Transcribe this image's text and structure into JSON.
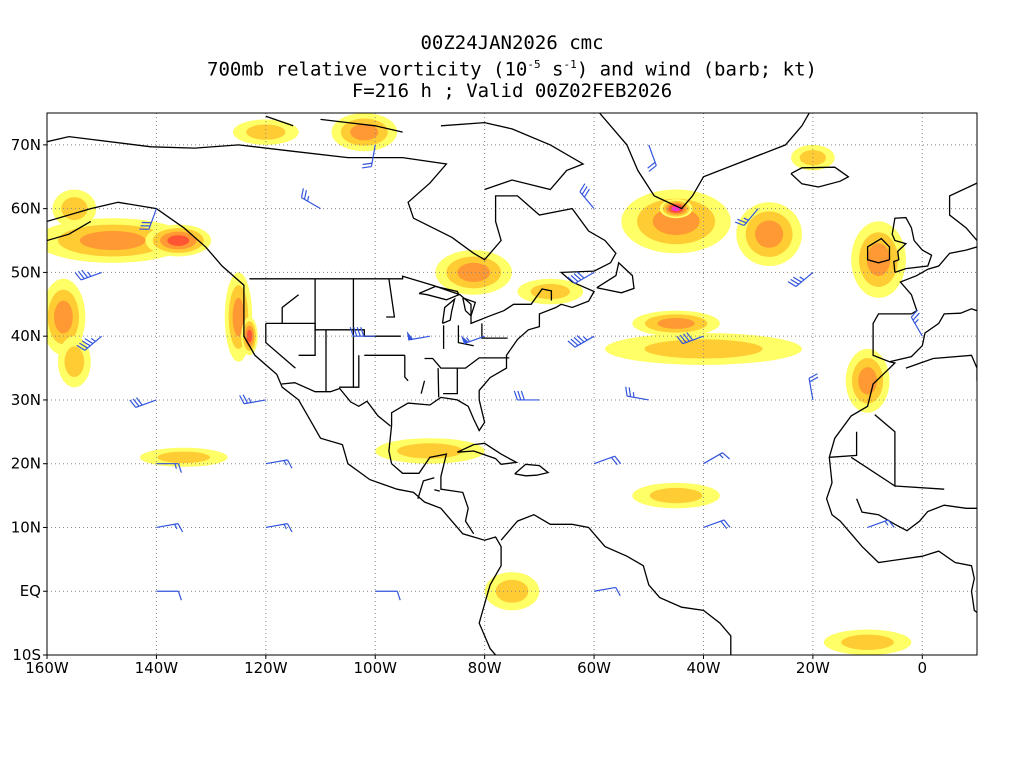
{
  "title": {
    "line1": "00Z24JAN2026 cmc",
    "line2_pre": "700mb relative vorticity (10",
    "line2_sup1": "-5",
    "line2_mid": " s",
    "line2_sup2": "-1",
    "line2_post": ") and wind (barb; kt)",
    "line3": "F=216 h ; Valid 00Z02FEB2026"
  },
  "map": {
    "lon_range": [
      -160,
      10
    ],
    "lat_range": [
      -10,
      75
    ],
    "lat_ticks": [
      {
        "value": 70,
        "label": "70N"
      },
      {
        "value": 60,
        "label": "60N"
      },
      {
        "value": 50,
        "label": "50N"
      },
      {
        "value": 40,
        "label": "40N"
      },
      {
        "value": 30,
        "label": "30N"
      },
      {
        "value": 20,
        "label": "20N"
      },
      {
        "value": 10,
        "label": "10N"
      },
      {
        "value": 0,
        "label": "EQ"
      },
      {
        "value": -10,
        "label": "10S"
      }
    ],
    "lon_ticks": [
      {
        "value": -160,
        "label": "160W"
      },
      {
        "value": -140,
        "label": "140W"
      },
      {
        "value": -120,
        "label": "120W"
      },
      {
        "value": -100,
        "label": "100W"
      },
      {
        "value": -80,
        "label": "80W"
      },
      {
        "value": -60,
        "label": "60W"
      },
      {
        "value": -40,
        "label": "40W"
      },
      {
        "value": -20,
        "label": "20W"
      },
      {
        "value": 0,
        "label": "0"
      }
    ],
    "colors": {
      "weak": "#ffff66",
      "moderate": "#ffcc33",
      "strong": "#ff9933",
      "intense": "#ff5533",
      "extreme": "#ff33cc",
      "barb": "#3355dd",
      "coast": "#000000",
      "grid": "#888888"
    },
    "vorticity_regions": [
      {
        "lon": -148,
        "lat": 55,
        "rx": 14,
        "ry": 3.5,
        "level": 3
      },
      {
        "lon": -136,
        "lat": 55,
        "rx": 6,
        "ry": 2.5,
        "level": 4
      },
      {
        "lon": -157,
        "lat": 43,
        "rx": 4,
        "ry": 6,
        "level": 3
      },
      {
        "lon": -155,
        "lat": 36,
        "rx": 3,
        "ry": 4,
        "level": 2
      },
      {
        "lon": -125,
        "lat": 43,
        "rx": 2.5,
        "ry": 7,
        "level": 3
      },
      {
        "lon": -123,
        "lat": 40,
        "rx": 1.5,
        "ry": 3,
        "level": 4
      },
      {
        "lon": -102,
        "lat": 72,
        "rx": 6,
        "ry": 3,
        "level": 3
      },
      {
        "lon": -120,
        "lat": 72,
        "rx": 6,
        "ry": 2,
        "level": 2
      },
      {
        "lon": -82,
        "lat": 50,
        "rx": 7,
        "ry": 3.5,
        "level": 3
      },
      {
        "lon": -68,
        "lat": 47,
        "rx": 6,
        "ry": 2,
        "level": 2
      },
      {
        "lon": -45,
        "lat": 58,
        "rx": 10,
        "ry": 5,
        "level": 3
      },
      {
        "lon": -45,
        "lat": 60,
        "rx": 3,
        "ry": 1.5,
        "level": 5
      },
      {
        "lon": -28,
        "lat": 56,
        "rx": 6,
        "ry": 5,
        "level": 3
      },
      {
        "lon": -40,
        "lat": 38,
        "rx": 18,
        "ry": 2.5,
        "level": 2
      },
      {
        "lon": -45,
        "lat": 42,
        "rx": 8,
        "ry": 2,
        "level": 3
      },
      {
        "lon": -8,
        "lat": 52,
        "rx": 5,
        "ry": 6,
        "level": 3
      },
      {
        "lon": -10,
        "lat": 33,
        "rx": 4,
        "ry": 5,
        "level": 3
      },
      {
        "lon": -90,
        "lat": 22,
        "rx": 10,
        "ry": 2,
        "level": 2
      },
      {
        "lon": -135,
        "lat": 21,
        "rx": 8,
        "ry": 1.5,
        "level": 2
      },
      {
        "lon": -45,
        "lat": 15,
        "rx": 8,
        "ry": 2,
        "level": 2
      },
      {
        "lon": -75,
        "lat": 0,
        "rx": 5,
        "ry": 3,
        "level": 2
      },
      {
        "lon": -10,
        "lat": -8,
        "rx": 8,
        "ry": 2,
        "level": 2
      },
      {
        "lon": -155,
        "lat": 60,
        "rx": 4,
        "ry": 3,
        "level": 2
      },
      {
        "lon": -20,
        "lat": 68,
        "rx": 4,
        "ry": 2,
        "level": 2
      }
    ],
    "wind_barbs": [
      {
        "lon": -150,
        "lat": 40,
        "dir": 230,
        "kt": 45
      },
      {
        "lon": -140,
        "lat": 30,
        "dir": 250,
        "kt": 30
      },
      {
        "lon": -120,
        "lat": 30,
        "dir": 260,
        "kt": 25
      },
      {
        "lon": -100,
        "lat": 40,
        "dir": 270,
        "kt": 40
      },
      {
        "lon": -90,
        "lat": 40,
        "dir": 260,
        "kt": 50
      },
      {
        "lon": -80,
        "lat": 40,
        "dir": 250,
        "kt": 55
      },
      {
        "lon": -60,
        "lat": 40,
        "dir": 240,
        "kt": 45
      },
      {
        "lon": -40,
        "lat": 40,
        "dir": 250,
        "kt": 40
      },
      {
        "lon": -70,
        "lat": 30,
        "dir": 270,
        "kt": 30
      },
      {
        "lon": -50,
        "lat": 30,
        "dir": 280,
        "kt": 25
      },
      {
        "lon": -140,
        "lat": 60,
        "dir": 200,
        "kt": 30
      },
      {
        "lon": -110,
        "lat": 60,
        "dir": 300,
        "kt": 25
      },
      {
        "lon": -60,
        "lat": 60,
        "dir": 320,
        "kt": 30
      },
      {
        "lon": -30,
        "lat": 60,
        "dir": 220,
        "kt": 25
      },
      {
        "lon": -140,
        "lat": 20,
        "dir": 90,
        "kt": 15
      },
      {
        "lon": -120,
        "lat": 20,
        "dir": 80,
        "kt": 15
      },
      {
        "lon": -60,
        "lat": 20,
        "dir": 70,
        "kt": 20
      },
      {
        "lon": -40,
        "lat": 20,
        "dir": 60,
        "kt": 15
      },
      {
        "lon": -140,
        "lat": 10,
        "dir": 80,
        "kt": 15
      },
      {
        "lon": -120,
        "lat": 10,
        "dir": 80,
        "kt": 15
      },
      {
        "lon": -40,
        "lat": 10,
        "dir": 70,
        "kt": 20
      },
      {
        "lon": -140,
        "lat": 0,
        "dir": 90,
        "kt": 10
      },
      {
        "lon": -100,
        "lat": 0,
        "dir": 90,
        "kt": 10
      },
      {
        "lon": -60,
        "lat": 0,
        "dir": 80,
        "kt": 10
      },
      {
        "lon": -20,
        "lat": 50,
        "dir": 230,
        "kt": 35
      },
      {
        "lon": 0,
        "lat": 40,
        "dir": 330,
        "kt": 25
      },
      {
        "lon": -20,
        "lat": 30,
        "dir": 350,
        "kt": 20
      },
      {
        "lon": -100,
        "lat": 70,
        "dir": 190,
        "kt": 20
      },
      {
        "lon": -50,
        "lat": 70,
        "dir": 160,
        "kt": 20
      },
      {
        "lon": -10,
        "lat": 10,
        "dir": 70,
        "kt": 15
      },
      {
        "lon": -150,
        "lat": 50,
        "dir": 250,
        "kt": 35
      },
      {
        "lon": -60,
        "lat": 50,
        "dir": 240,
        "kt": 40
      }
    ]
  }
}
